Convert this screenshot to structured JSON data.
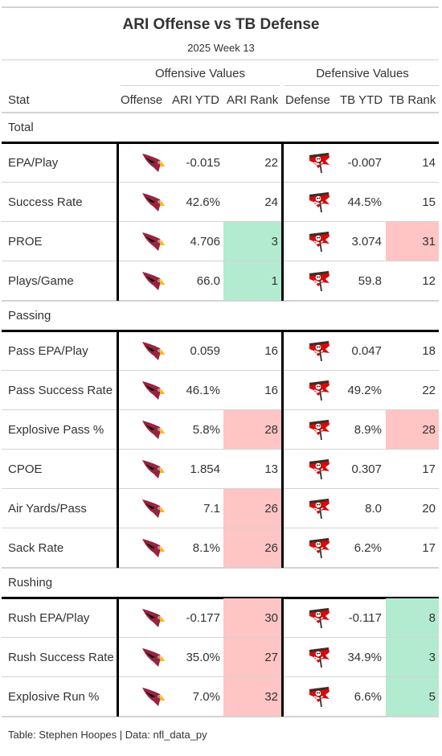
{
  "title": "ARI Offense vs TB Defense",
  "subtitle": "2025 Week 13",
  "spanners": {
    "offense": "Offensive Values",
    "defense": "Defensive Values"
  },
  "columns": [
    "Stat",
    "Offense",
    "ARI YTD",
    "ARI Rank",
    "Defense",
    "TB YTD",
    "TB Rank"
  ],
  "colors": {
    "good": "#b3ebd0",
    "bad": "#ffc4c4",
    "border": "#000000",
    "rule": "#d3d3d3"
  },
  "logos": {
    "offense": "cardinal-logo-icon",
    "defense": "buccaneer-flag-logo-icon"
  },
  "groups": [
    {
      "name": "Total",
      "rows": [
        {
          "stat": "EPA/Play",
          "ari_ytd": "-0.015",
          "ari_rank": "22",
          "ari_shade": "",
          "tb_ytd": "-0.007",
          "tb_rank": "14",
          "tb_shade": ""
        },
        {
          "stat": "Success Rate",
          "ari_ytd": "42.6%",
          "ari_rank": "24",
          "ari_shade": "",
          "tb_ytd": "44.5%",
          "tb_rank": "15",
          "tb_shade": ""
        },
        {
          "stat": "PROE",
          "ari_ytd": "4.706",
          "ari_rank": "3",
          "ari_shade": "good",
          "tb_ytd": "3.074",
          "tb_rank": "31",
          "tb_shade": "bad"
        },
        {
          "stat": "Plays/Game",
          "ari_ytd": "66.0",
          "ari_rank": "1",
          "ari_shade": "good",
          "tb_ytd": "59.8",
          "tb_rank": "12",
          "tb_shade": ""
        }
      ]
    },
    {
      "name": "Passing",
      "rows": [
        {
          "stat": "Pass EPA/Play",
          "ari_ytd": "0.059",
          "ari_rank": "16",
          "ari_shade": "",
          "tb_ytd": "0.047",
          "tb_rank": "18",
          "tb_shade": ""
        },
        {
          "stat": "Pass Success Rate",
          "ari_ytd": "46.1%",
          "ari_rank": "16",
          "ari_shade": "",
          "tb_ytd": "49.2%",
          "tb_rank": "22",
          "tb_shade": ""
        },
        {
          "stat": "Explosive Pass %",
          "ari_ytd": "5.8%",
          "ari_rank": "28",
          "ari_shade": "bad",
          "tb_ytd": "8.9%",
          "tb_rank": "28",
          "tb_shade": "bad"
        },
        {
          "stat": "CPOE",
          "ari_ytd": "1.854",
          "ari_rank": "13",
          "ari_shade": "",
          "tb_ytd": "0.307",
          "tb_rank": "17",
          "tb_shade": ""
        },
        {
          "stat": "Air Yards/Pass",
          "ari_ytd": "7.1",
          "ari_rank": "26",
          "ari_shade": "bad",
          "tb_ytd": "8.0",
          "tb_rank": "20",
          "tb_shade": ""
        },
        {
          "stat": "Sack Rate",
          "ari_ytd": "8.1%",
          "ari_rank": "26",
          "ari_shade": "bad",
          "tb_ytd": "6.2%",
          "tb_rank": "17",
          "tb_shade": ""
        }
      ]
    },
    {
      "name": "Rushing",
      "rows": [
        {
          "stat": "Rush EPA/Play",
          "ari_ytd": "-0.177",
          "ari_rank": "30",
          "ari_shade": "bad",
          "tb_ytd": "-0.117",
          "tb_rank": "8",
          "tb_shade": "good"
        },
        {
          "stat": "Rush Success Rate",
          "ari_ytd": "35.0%",
          "ari_rank": "27",
          "ari_shade": "bad",
          "tb_ytd": "34.9%",
          "tb_rank": "3",
          "tb_shade": "good"
        },
        {
          "stat": "Explosive Run %",
          "ari_ytd": "7.0%",
          "ari_rank": "32",
          "ari_shade": "bad",
          "tb_ytd": "6.6%",
          "tb_rank": "5",
          "tb_shade": "good"
        }
      ]
    }
  ],
  "footer": "Table: Stephen Hoopes | Data: nfl_data_py"
}
